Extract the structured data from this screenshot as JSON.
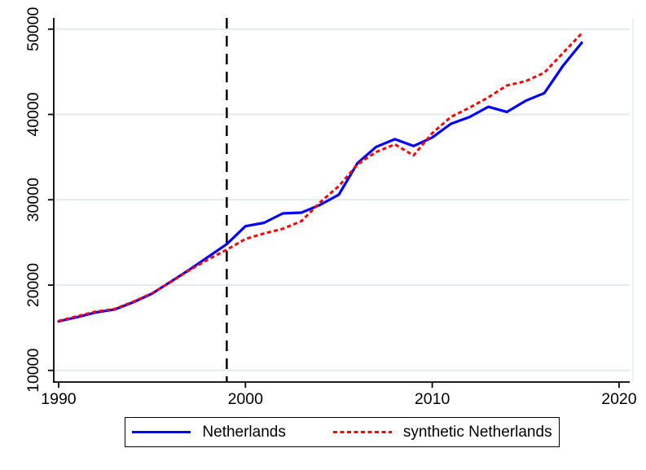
{
  "chart_data": {
    "type": "line",
    "title": "",
    "xlabel": "",
    "ylabel": "",
    "x": [
      1990,
      1991,
      1992,
      1993,
      1994,
      1995,
      1996,
      1997,
      1998,
      1999,
      2000,
      2001,
      2002,
      2003,
      2004,
      2005,
      2006,
      2007,
      2008,
      2009,
      2010,
      2011,
      2012,
      2013,
      2014,
      2015,
      2016,
      2017,
      2018
    ],
    "series": [
      {
        "name": "Netherlands",
        "color": "#0000ff",
        "style": "solid",
        "values": [
          15750,
          16250,
          16800,
          17150,
          18000,
          19000,
          20400,
          21800,
          23300,
          24800,
          26900,
          27300,
          28400,
          28500,
          29400,
          30600,
          34300,
          36200,
          37100,
          36300,
          37300,
          38900,
          39700,
          40900,
          40300,
          41600,
          42500,
          45700,
          48400
        ]
      },
      {
        "name": "synthetic Netherlands",
        "color": "#ff0000",
        "style": "dashed",
        "values": [
          15800,
          16350,
          16900,
          17200,
          18050,
          19050,
          20350,
          21750,
          23000,
          24150,
          25400,
          26050,
          26600,
          27500,
          29700,
          31600,
          34150,
          35600,
          36500,
          35200,
          37800,
          39700,
          40800,
          42000,
          43400,
          43900,
          44900,
          47200,
          49500
        ]
      }
    ],
    "treatment_line": {
      "x": 1999,
      "color": "#000000",
      "style": "dashed"
    },
    "xticks": [
      1990,
      2000,
      2010,
      2020
    ],
    "yticks": [
      10000,
      20000,
      30000,
      40000,
      50000
    ],
    "xticklabels": [
      "1990",
      "2000",
      "2010",
      "2020"
    ],
    "yticklabels": [
      "10000",
      "20000",
      "30000",
      "40000",
      "50000"
    ],
    "xlim": [
      1989.74,
      2020.57
    ],
    "ylim": [
      8640,
      51313
    ],
    "grid": "horizontal",
    "gridline_color": "#e4eaf1",
    "axis_color": "#000000",
    "legend_position": "bottom-center"
  }
}
